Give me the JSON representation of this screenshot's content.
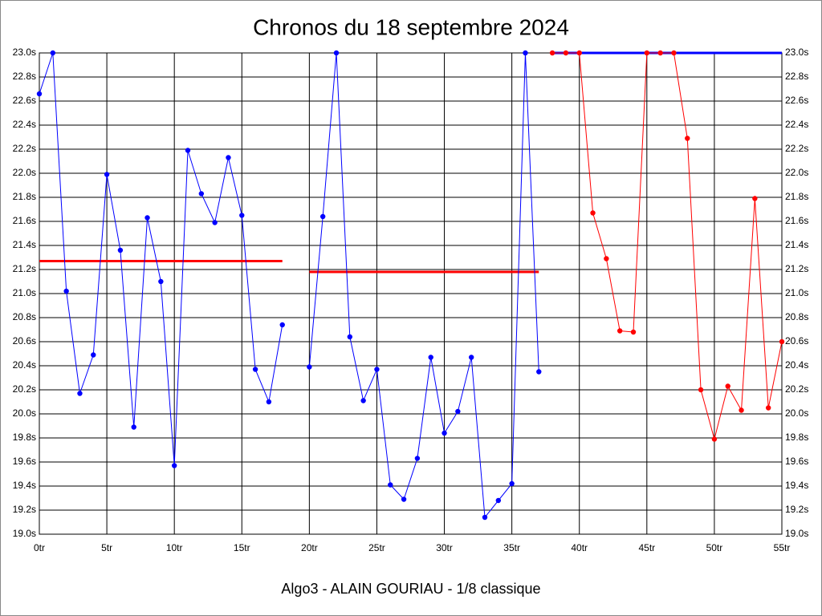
{
  "chart_data": {
    "type": "line",
    "title": "Chronos du 18 septembre 2024",
    "x_label": "Algo3 - ALAIN GOURIAU - 1/8 classique",
    "grid": true,
    "xlim": [
      0,
      55
    ],
    "ylim": [
      19.0,
      23.0
    ],
    "xticks": [
      {
        "value": 0,
        "label": "0tr"
      },
      {
        "value": 5,
        "label": "5tr"
      },
      {
        "value": 10,
        "label": "10tr"
      },
      {
        "value": 15,
        "label": "15tr"
      },
      {
        "value": 20,
        "label": "20tr"
      },
      {
        "value": 25,
        "label": "25tr"
      },
      {
        "value": 30,
        "label": "30tr"
      },
      {
        "value": 35,
        "label": "35tr"
      },
      {
        "value": 40,
        "label": "40tr"
      },
      {
        "value": 45,
        "label": "45tr"
      },
      {
        "value": 50,
        "label": "50tr"
      },
      {
        "value": 55,
        "label": "55tr"
      }
    ],
    "yticks": [
      {
        "value": 19.0,
        "label": "19.0s"
      },
      {
        "value": 19.2,
        "label": "19.2s"
      },
      {
        "value": 19.4,
        "label": "19.4s"
      },
      {
        "value": 19.6,
        "label": "19.6s"
      },
      {
        "value": 19.8,
        "label": "19.8s"
      },
      {
        "value": 20.0,
        "label": "20.0s"
      },
      {
        "value": 20.2,
        "label": "20.2s"
      },
      {
        "value": 20.4,
        "label": "20.4s"
      },
      {
        "value": 20.6,
        "label": "20.6s"
      },
      {
        "value": 20.8,
        "label": "20.8s"
      },
      {
        "value": 21.0,
        "label": "21.0s"
      },
      {
        "value": 21.2,
        "label": "21.2s"
      },
      {
        "value": 21.4,
        "label": "21.4s"
      },
      {
        "value": 21.6,
        "label": "21.6s"
      },
      {
        "value": 21.8,
        "label": "21.8s"
      },
      {
        "value": 22.0,
        "label": "22.0s"
      },
      {
        "value": 22.2,
        "label": "22.2s"
      },
      {
        "value": 22.4,
        "label": "22.4s"
      },
      {
        "value": 22.6,
        "label": "22.6s"
      },
      {
        "value": 22.8,
        "label": "22.8s"
      },
      {
        "value": 23.0,
        "label": "23.0s"
      }
    ],
    "series": [
      {
        "color": "#0000ff",
        "x": [
          0,
          1,
          2,
          3,
          4,
          5,
          6,
          7,
          8,
          9,
          10,
          11,
          12,
          13,
          14,
          15,
          16,
          17,
          18,
          19,
          20,
          21,
          22,
          23,
          24,
          25,
          26,
          27,
          28,
          29,
          30,
          31,
          32,
          33,
          34,
          35,
          36,
          37
        ],
        "values": [
          22.66,
          23.0,
          21.02,
          20.17,
          20.49,
          21.99,
          21.36,
          19.89,
          21.63,
          21.1,
          19.57,
          22.19,
          21.83,
          21.59,
          22.13,
          21.65,
          20.37,
          20.1,
          20.74,
          null,
          20.39,
          21.64,
          23.0,
          20.64,
          20.11,
          20.37,
          19.41,
          19.29,
          19.63,
          20.47,
          19.84,
          20.02,
          20.47,
          19.14,
          19.28,
          19.42,
          23.0,
          20.35
        ]
      },
      {
        "color": "#ff0000",
        "x": [
          38,
          39,
          40,
          41,
          42,
          43,
          44,
          45,
          46,
          47,
          48,
          49,
          50,
          51,
          52,
          53,
          54,
          55
        ],
        "values": [
          23.0,
          23.0,
          23.0,
          21.67,
          21.29,
          20.69,
          20.68,
          23.0,
          23.0,
          23.0,
          22.29,
          20.2,
          19.79,
          20.23,
          20.03,
          21.79,
          20.05,
          20.6
        ]
      }
    ],
    "lines": [
      {
        "color": "#ff0000",
        "x": [
          0,
          18
        ],
        "y": 21.27
      },
      {
        "color": "#ff0000",
        "x": [
          20,
          37
        ],
        "y": 21.18
      },
      {
        "color": "#0000ff",
        "x": [
          38,
          55
        ],
        "y": 23.0
      }
    ]
  }
}
